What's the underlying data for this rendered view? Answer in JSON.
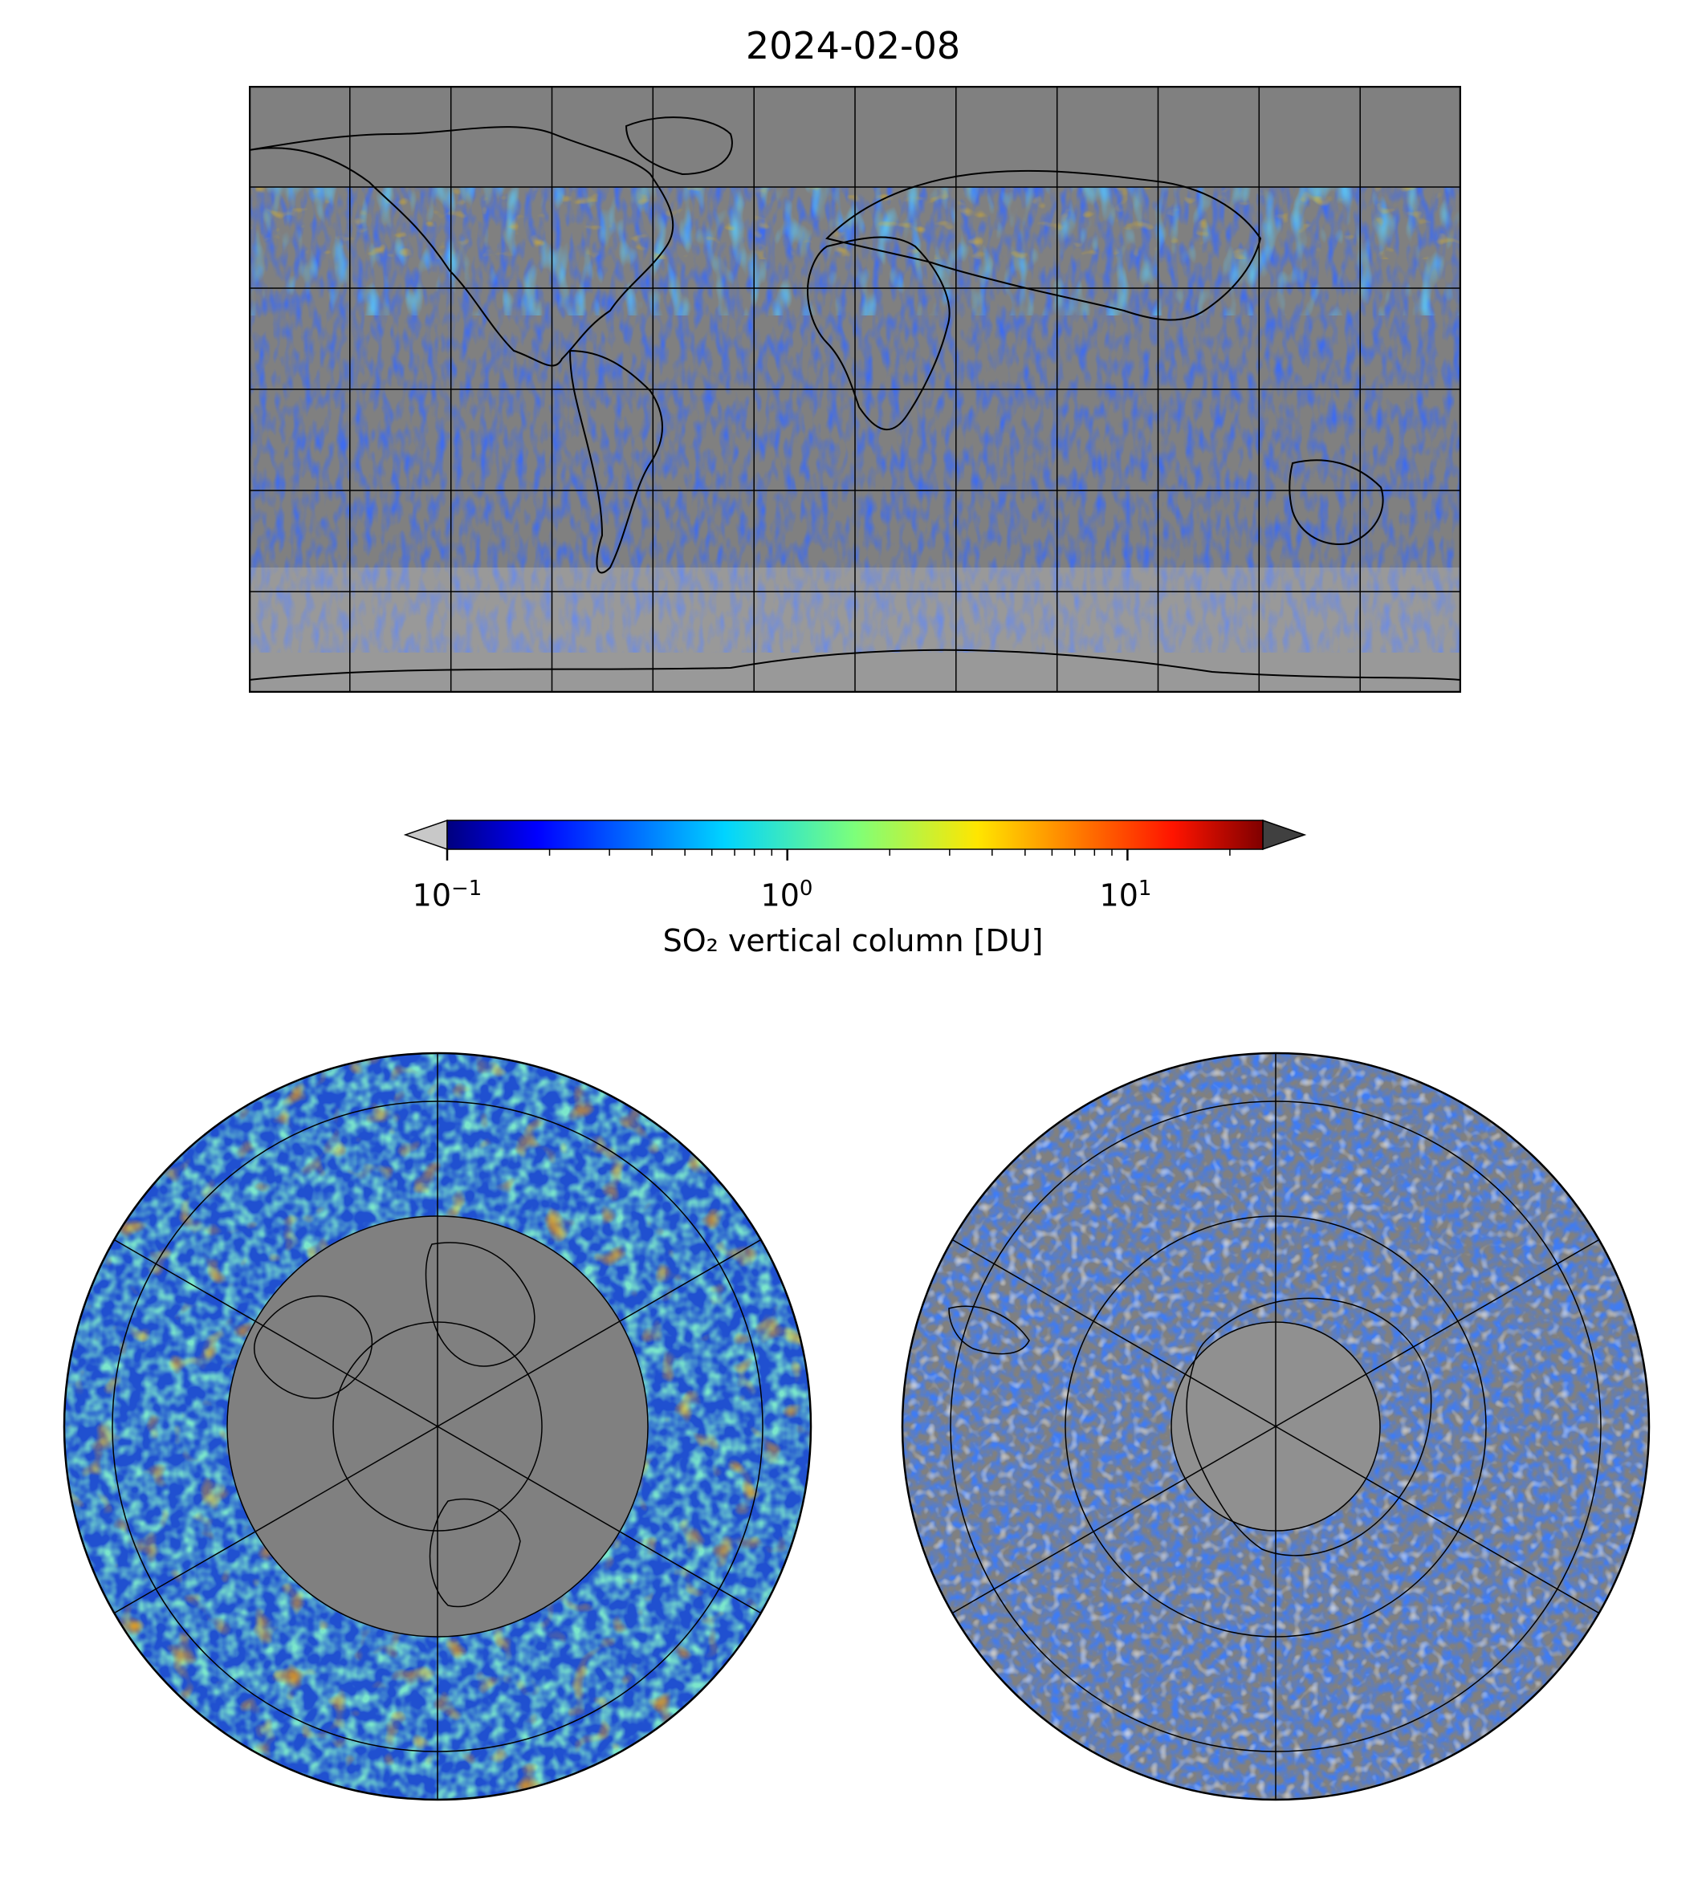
{
  "title": "2024-02-08",
  "colorbar": {
    "label": "SO₂ vertical column [DU]",
    "scale": "log",
    "range": [
      0.1,
      25
    ],
    "ticks": [
      {
        "base": "10",
        "exp": "−1"
      },
      {
        "base": "10",
        "exp": "0"
      },
      {
        "base": "10",
        "exp": "1"
      }
    ],
    "tick_values": [
      0.1,
      1,
      10
    ],
    "colormap": "jet",
    "under_color": "#c8c8c8",
    "over_color": "#404040"
  },
  "colors": {
    "land_ocean_background": "#808080",
    "coastline": "#000000",
    "gridline": "#000000"
  },
  "panels": [
    {
      "name": "global",
      "projection": "equirectangular"
    },
    {
      "name": "north-polar",
      "projection": "polar stereographic (north)"
    },
    {
      "name": "south-polar",
      "projection": "polar stereographic (south)"
    }
  ]
}
